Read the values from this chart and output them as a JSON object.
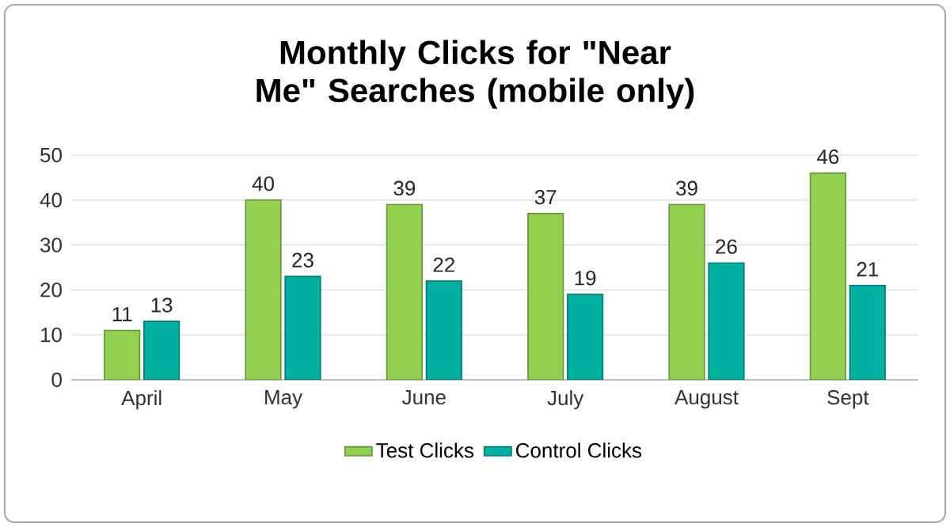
{
  "chart_data": {
    "type": "bar",
    "title": "Monthly Clicks for \"Near Me\" Searches (mobile only)",
    "categories": [
      "April",
      "May",
      "June",
      "July",
      "August",
      "Sept"
    ],
    "series": [
      {
        "name": "Test Clicks",
        "color": "#92d050",
        "values": [
          11,
          40,
          39,
          37,
          39,
          46
        ]
      },
      {
        "name": "Control Clicks",
        "color": "#00b0a0",
        "values": [
          13,
          23,
          22,
          19,
          26,
          21
        ]
      }
    ],
    "ylim": [
      0,
      50
    ],
    "yticks": [
      0,
      10,
      20,
      30,
      40,
      50
    ],
    "grid": "y",
    "legend": "bottom",
    "data_labels": true
  }
}
